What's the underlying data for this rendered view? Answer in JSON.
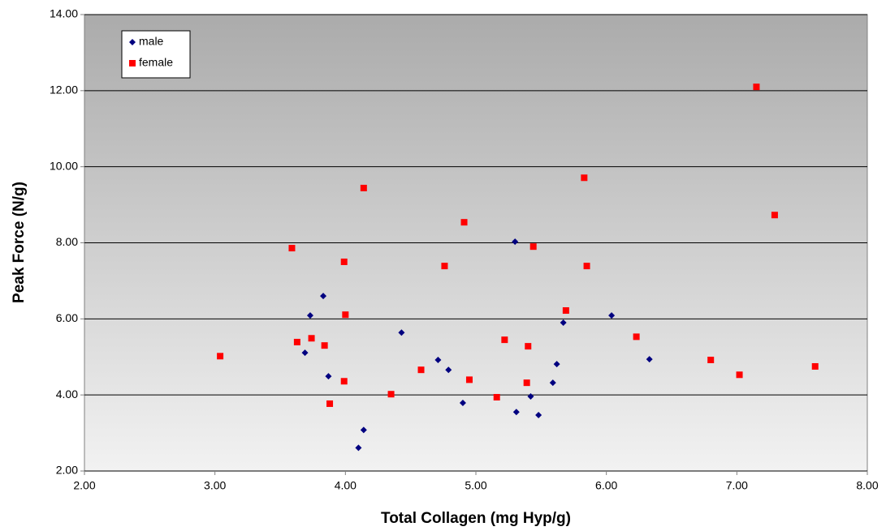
{
  "chart_data": {
    "type": "scatter",
    "xlabel": "Total Collagen (mg Hyp/g)",
    "ylabel": "Peak Force (N/g)",
    "xlim": [
      2,
      8
    ],
    "ylim": [
      2,
      14
    ],
    "xticks": [
      {
        "value": 2,
        "label": "2.00"
      },
      {
        "value": 3,
        "label": "3.00"
      },
      {
        "value": 4,
        "label": "4.00"
      },
      {
        "value": 5,
        "label": "5.00"
      },
      {
        "value": 6,
        "label": "6.00"
      },
      {
        "value": 7,
        "label": "7.00"
      },
      {
        "value": 8,
        "label": "8.00"
      }
    ],
    "yticks": [
      {
        "value": 2,
        "label": "2.00"
      },
      {
        "value": 4,
        "label": "4.00"
      },
      {
        "value": 6,
        "label": "6.00"
      },
      {
        "value": 8,
        "label": "8.00"
      },
      {
        "value": 10,
        "label": "10.00"
      },
      {
        "value": 12,
        "label": "12.00"
      },
      {
        "value": 14,
        "label": "14.00"
      }
    ],
    "grid": true,
    "legend": "upper left",
    "series": [
      {
        "name": "male",
        "color": "#000080",
        "marker": "diamond",
        "x": [
          3.73,
          3.83,
          3.69,
          3.87,
          4.14,
          4.1,
          4.43,
          4.71,
          4.79,
          4.9,
          5.3,
          5.31,
          5.42,
          5.48,
          5.59,
          5.62,
          5.67,
          6.04,
          6.33
        ],
        "values": [
          6.09,
          6.6,
          5.11,
          4.49,
          3.08,
          2.61,
          5.64,
          4.92,
          4.66,
          3.79,
          8.03,
          3.55,
          3.96,
          3.47,
          4.32,
          4.81,
          5.9,
          6.09,
          4.94
        ]
      },
      {
        "name": "female",
        "color": "#ff0000",
        "marker": "square",
        "x": [
          3.04,
          3.59,
          3.63,
          3.74,
          3.84,
          3.88,
          3.99,
          4.0,
          3.99,
          4.14,
          4.35,
          4.58,
          4.76,
          4.91,
          4.95,
          5.16,
          5.22,
          5.4,
          5.39,
          5.44,
          5.69,
          5.83,
          5.85,
          6.23,
          6.8,
          7.02,
          7.15,
          7.29,
          7.6
        ],
        "values": [
          5.02,
          7.86,
          5.39,
          5.49,
          5.3,
          3.77,
          7.5,
          6.11,
          4.36,
          9.44,
          4.02,
          4.66,
          7.39,
          8.54,
          4.4,
          3.94,
          5.45,
          5.28,
          4.32,
          7.9,
          6.22,
          9.71,
          7.39,
          5.53,
          4.92,
          4.53,
          12.1,
          8.73,
          4.75
        ]
      }
    ]
  }
}
